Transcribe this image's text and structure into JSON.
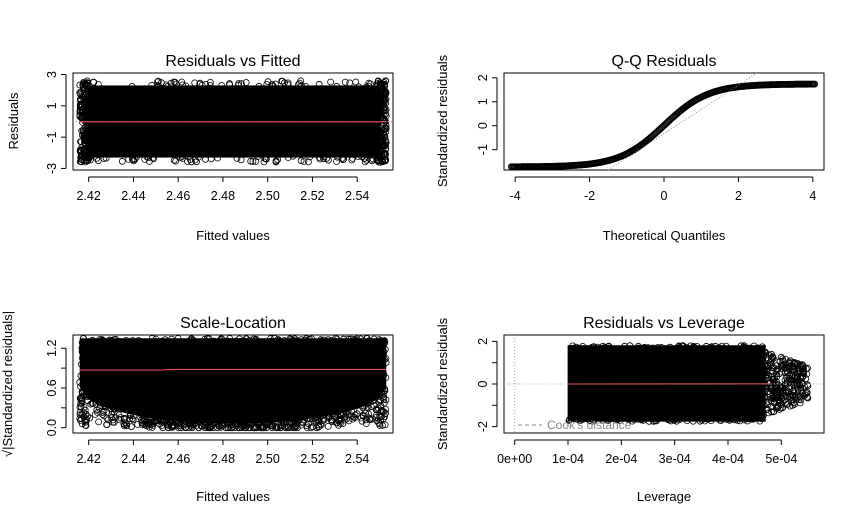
{
  "chart_data": [
    {
      "id": "rvf",
      "type": "scatter",
      "title": "Residuals vs Fitted",
      "xlabel": "Fitted values",
      "ylabel": "Residuals",
      "xlim": [
        2.413,
        2.556
      ],
      "ylim": [
        -3.1,
        3.1
      ],
      "xticks": [
        2.42,
        2.44,
        2.46,
        2.48,
        2.5,
        2.52,
        2.54
      ],
      "xtick_labels": [
        "2.42",
        "2.44",
        "2.46",
        "2.48",
        "2.50",
        "2.52",
        "2.54"
      ],
      "yticks": [
        -3,
        -1,
        1,
        3
      ],
      "ytick_labels": [
        "-3",
        "-1",
        "1",
        "3"
      ],
      "point_cloud": {
        "x_range": [
          2.416,
          2.553
        ],
        "y_range": [
          -2.6,
          2.6
        ]
      },
      "smoother": {
        "x": [
          2.416,
          2.553
        ],
        "y": [
          -0.02,
          -0.02
        ],
        "color": "#d9534f"
      },
      "reference_line": {
        "y": 0,
        "style": "dotted",
        "color": "#888888"
      }
    },
    {
      "id": "qq",
      "type": "scatter",
      "title": "Q-Q Residuals",
      "xlabel": "Theoretical Quantiles",
      "ylabel": "Standardized residuals",
      "xlim": [
        -4.3,
        4.3
      ],
      "ylim": [
        -1.85,
        2.2
      ],
      "xticks": [
        -4,
        -2,
        0,
        2,
        4
      ],
      "xtick_labels": [
        "-4",
        "-2",
        "0",
        "2",
        "4"
      ],
      "yticks": [
        -1,
        0,
        1,
        2
      ],
      "ytick_labels": [
        "-1",
        "0",
        "1",
        "2"
      ],
      "qq_curve": {
        "x_range": [
          -4.1,
          4.05
        ],
        "y_min": -1.72,
        "y_max": 1.74,
        "steepness": 1.2
      },
      "reference_line": {
        "x": [
          -1.5,
          2.5
        ],
        "y": [
          -1.85,
          2.2
        ],
        "style": "dotted",
        "color": "#888888"
      }
    },
    {
      "id": "sl",
      "type": "scatter",
      "title": "Scale-Location",
      "xlabel": "Fitted values",
      "ylabel": "√|Standardized residuals|",
      "xlim": [
        2.413,
        2.556
      ],
      "ylim": [
        -0.08,
        1.4
      ],
      "xticks": [
        2.42,
        2.44,
        2.46,
        2.48,
        2.5,
        2.52,
        2.54
      ],
      "xtick_labels": [
        "2.42",
        "2.44",
        "2.46",
        "2.48",
        "2.50",
        "2.52",
        "2.54"
      ],
      "yticks": [
        0.0,
        0.6,
        1.2
      ],
      "ytick_labels": [
        "0.0",
        "0.6",
        "1.2"
      ],
      "minor_yticks": [
        0.3,
        0.9
      ],
      "point_cloud": {
        "x_range": [
          2.416,
          2.553
        ],
        "y_range": [
          0.0,
          1.35
        ]
      },
      "smoother": {
        "x": [
          2.416,
          2.453,
          2.456,
          2.553
        ],
        "y": [
          0.87,
          0.87,
          0.88,
          0.88
        ],
        "color": "#d9534f"
      }
    },
    {
      "id": "rvl",
      "type": "scatter",
      "title": "Residuals vs Leverage",
      "xlabel": "Leverage",
      "ylabel": "Standardized residuals",
      "xlim": [
        -2e-05,
        0.00058
      ],
      "ylim": [
        -2.3,
        2.3
      ],
      "xticks": [
        0.0,
        0.0001,
        0.0002,
        0.0003,
        0.0004,
        0.0005
      ],
      "xtick_labels": [
        "0e+00",
        "1e-04",
        "2e-04",
        "3e-04",
        "4e-04",
        "5e-04"
      ],
      "yticks": [
        -2,
        0,
        2
      ],
      "ytick_labels": [
        "-2",
        "0",
        "2"
      ],
      "minor_yticks": [
        -1,
        1
      ],
      "point_cloud": {
        "x_range": [
          0.0001,
          0.00055
        ],
        "y_range": [
          -1.75,
          1.8
        ]
      },
      "smoother": {
        "x": [
          0.0001,
          0.00048
        ],
        "y": [
          0.0,
          0.01
        ],
        "color": "#d9534f"
      },
      "reference_lines": [
        {
          "y": 0,
          "style": "dotted",
          "color": "#aaaaaa"
        },
        {
          "x": 0,
          "style": "dotted",
          "color": "#aaaaaa"
        }
      ],
      "legend": {
        "entry": "Cook's distance",
        "line_style": "dashed",
        "color": "#888888",
        "placement": "bottom-left"
      }
    }
  ]
}
